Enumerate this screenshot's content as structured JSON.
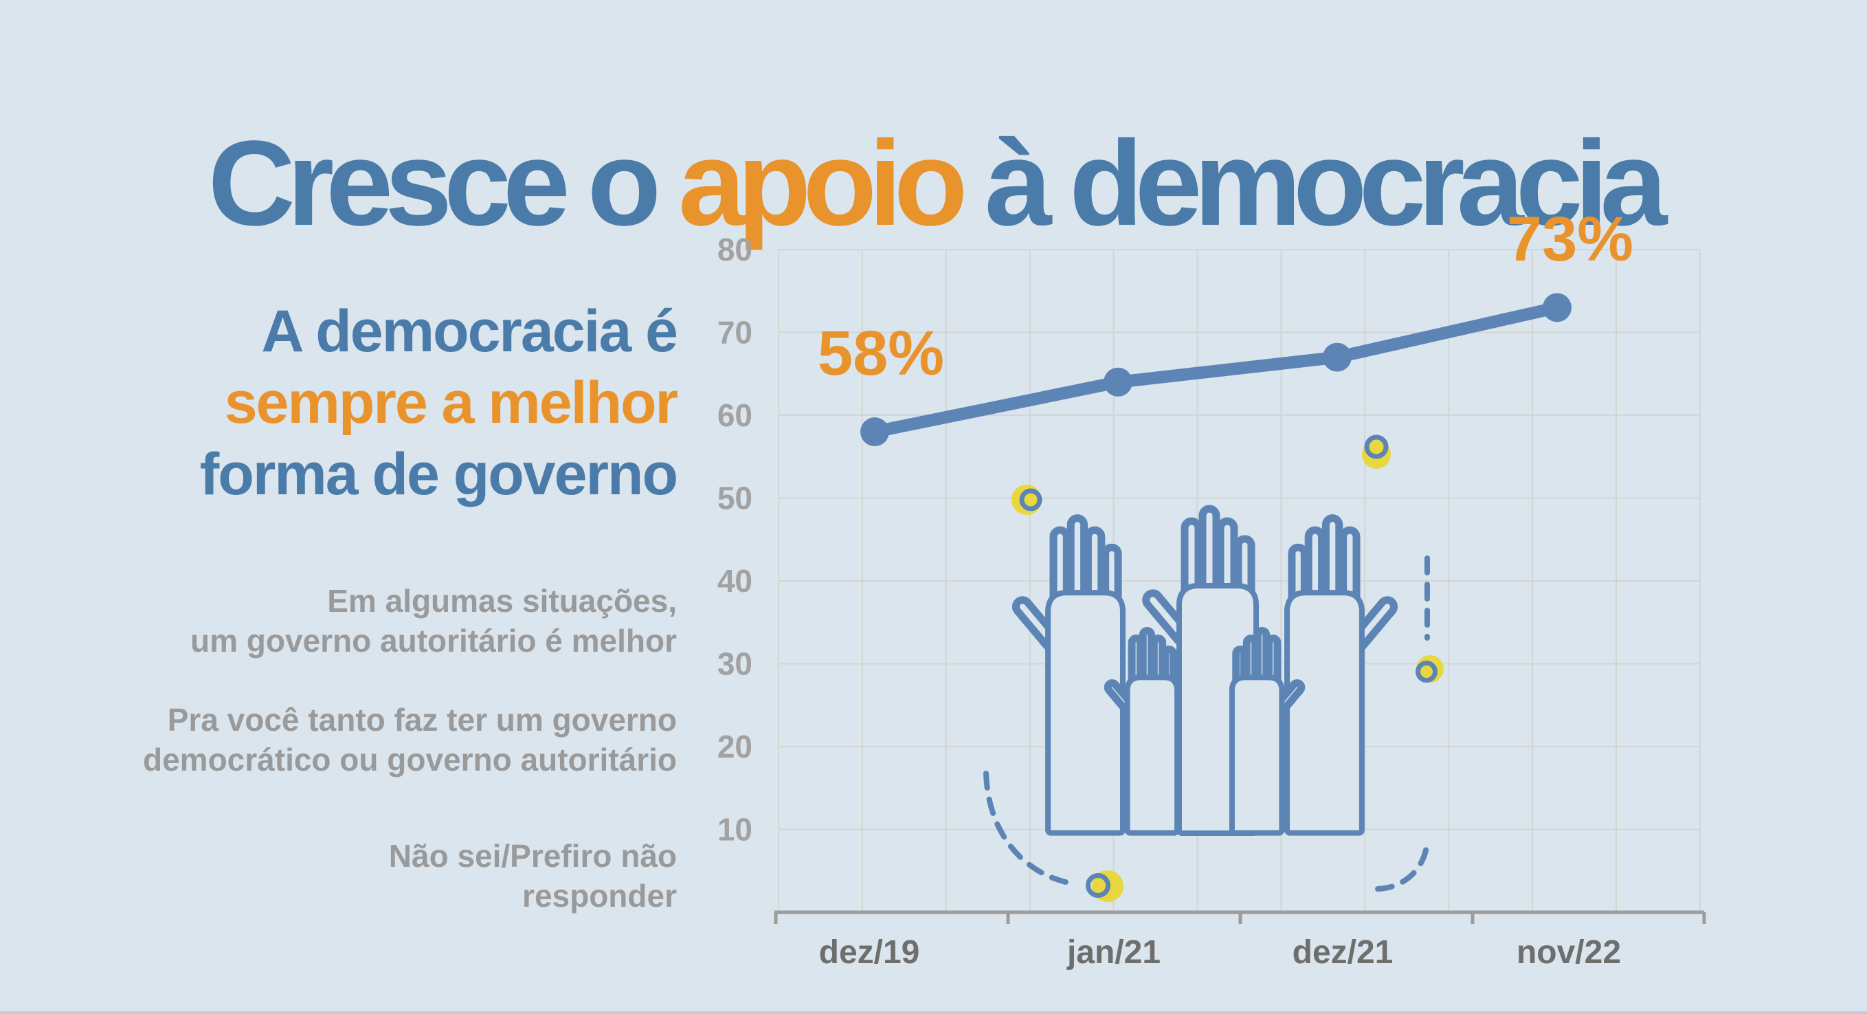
{
  "title": {
    "prefix": "Cresce o ",
    "highlight": "apoio",
    "suffix": " à democracia"
  },
  "statement": {
    "lines": [
      {
        "text": "A democracia é",
        "emphasis": false
      },
      {
        "text": "sempre a melhor",
        "emphasis": true
      },
      {
        "text": "forma de governo",
        "emphasis": false
      }
    ]
  },
  "other_answers": [
    {
      "lines": [
        "Em algumas situações,",
        "um governo autoritário é melhor"
      ]
    },
    {
      "lines": [
        "Pra você tanto faz ter um governo",
        "democrático ou governo autoritário"
      ]
    },
    {
      "lines": [
        "Não sei/Prefiro não",
        "responder"
      ]
    }
  ],
  "chart_data": {
    "type": "line",
    "title": "Cresce o apoio à democracia",
    "categories": [
      "dez/19",
      "jan/21",
      "dez/21",
      "nov/22"
    ],
    "series": [
      {
        "name": "A democracia é sempre a melhor forma de governo",
        "values": [
          58,
          64,
          67,
          73
        ]
      }
    ],
    "point_labels": [
      {
        "category": "dez/19",
        "text": "58%"
      },
      {
        "category": "nov/22",
        "text": "73%"
      }
    ],
    "ylim": [
      0,
      80
    ],
    "yticks": [
      10,
      20,
      30,
      40,
      50,
      60,
      70,
      80
    ],
    "grid": true,
    "legend_position": "left",
    "line_color": "#5c84b5",
    "annotation_color": "#e9932d"
  },
  "colors": {
    "background": "#dae5ee",
    "title_blue": "#4a7ba9",
    "accent_orange": "#e9932d",
    "chart_blue": "#5c84b5",
    "decor_yellow": "#e8d73e",
    "gray_text": "#9a9a9a",
    "axis_label_gray": "#a2a2a2",
    "x_label_gray": "#6e6e6c",
    "gridline": "#d3d5d1",
    "axis_line": "#9c9c9a"
  },
  "icons": [
    "raised-hands-icon",
    "dashed-arc-icon",
    "dot-accent-icon"
  ]
}
